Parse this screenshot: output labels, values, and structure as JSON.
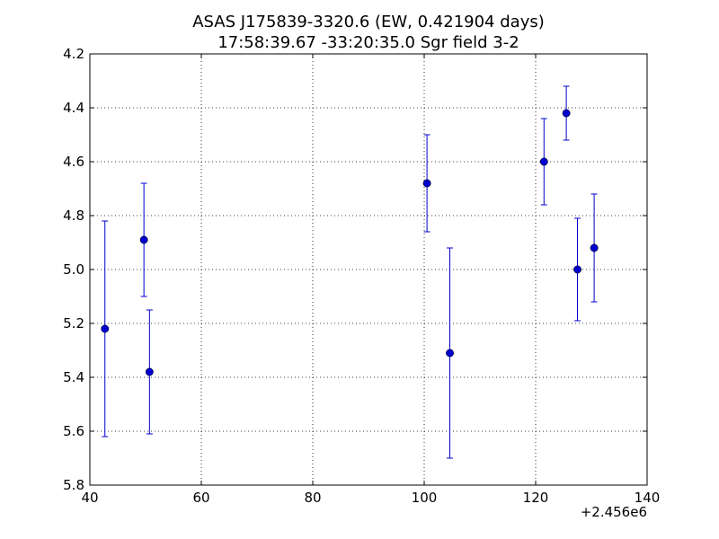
{
  "chart_data": {
    "type": "scatter",
    "title_line1": "ASAS J175839-3320.6 (EW, 0.421904 days)",
    "title_line2": "17:58:39.67 -33:20:35.0 Sgr field 3-2",
    "xlabel": "",
    "ylabel": "",
    "x_offset_label": "+2.456e6",
    "xlim": [
      40,
      140
    ],
    "ylim": [
      5.8,
      4.2
    ],
    "y_inverted": true,
    "grid": true,
    "x_ticks": [
      40,
      60,
      80,
      100,
      120,
      140
    ],
    "y_ticks": [
      4.2,
      4.4,
      4.6,
      4.8,
      5.0,
      5.2,
      5.4,
      5.6,
      5.8
    ],
    "x_tick_labels": [
      "40",
      "60",
      "80",
      "100",
      "120",
      "140"
    ],
    "y_tick_labels": [
      "4.2",
      "4.4",
      "4.6",
      "4.8",
      "5.0",
      "5.2",
      "5.4",
      "5.6",
      "5.8"
    ],
    "points": [
      {
        "x": 42.7,
        "y": 5.22,
        "err": 0.4
      },
      {
        "x": 49.7,
        "y": 4.89,
        "err": 0.21
      },
      {
        "x": 50.7,
        "y": 5.38,
        "err": 0.23
      },
      {
        "x": 100.5,
        "y": 4.68,
        "err": 0.18
      },
      {
        "x": 104.6,
        "y": 5.31,
        "err": 0.39
      },
      {
        "x": 121.5,
        "y": 4.6,
        "err": 0.16
      },
      {
        "x": 125.5,
        "y": 4.42,
        "err": 0.1
      },
      {
        "x": 127.5,
        "y": 5.0,
        "err": 0.19
      },
      {
        "x": 130.5,
        "y": 4.92,
        "err": 0.2
      }
    ],
    "marker_color": "#0000cc",
    "errorbar_color": "#0000cc"
  }
}
